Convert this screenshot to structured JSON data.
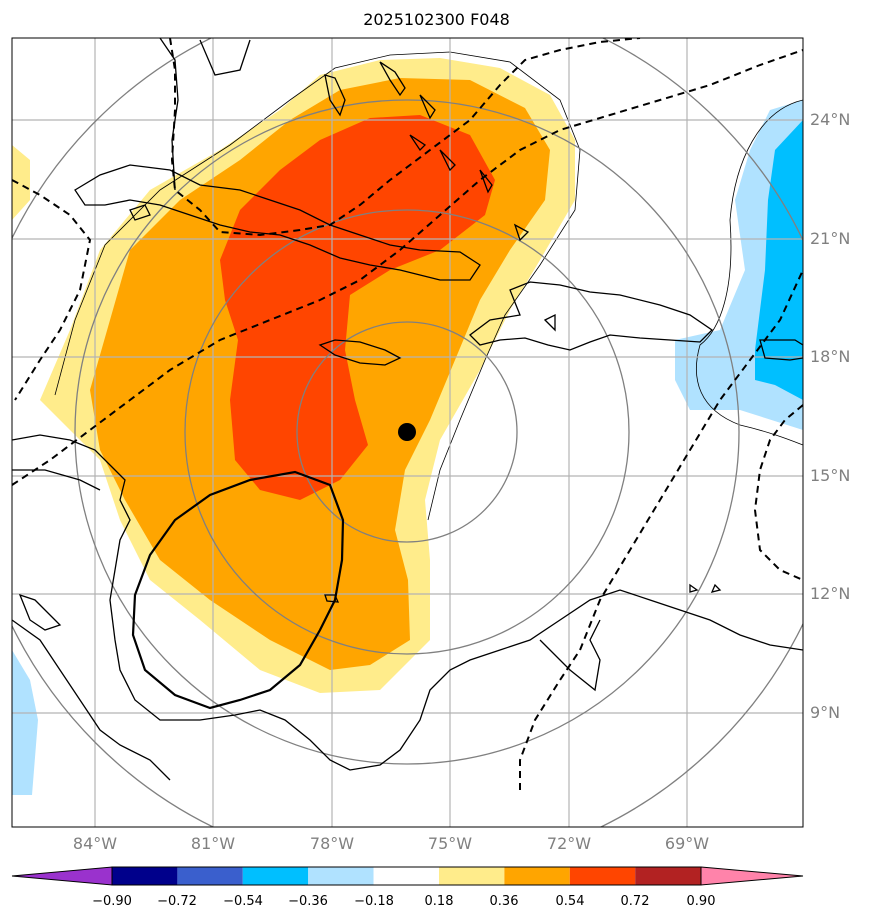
{
  "title": "2025102300 F048",
  "map": {
    "lon_ticks": [
      "84°W",
      "81°W",
      "78°W",
      "75°W",
      "72°W",
      "69°W"
    ],
    "lat_ticks": [
      "24°N",
      "21°N",
      "18°N",
      "15°N",
      "12°N",
      "9°N"
    ],
    "land_color": "#ffffff",
    "coastline_color": "#000000",
    "gridline_color": "#b3b3b3",
    "range_ring_color": "#808080"
  },
  "colorbar": {
    "tick_labels": [
      "−0.90",
      "−0.72",
      "−0.54",
      "−0.36",
      "−0.18",
      "0.18",
      "0.36",
      "0.54",
      "0.72",
      "0.90"
    ],
    "colors": [
      "#9a32cd",
      "#00008b",
      "#3a5fcd",
      "#00bfff",
      "#b0e2ff",
      "#ffffff",
      "#ffec8b",
      "#ffa500",
      "#ff4500",
      "#b22222",
      "#ff83aa"
    ]
  }
}
